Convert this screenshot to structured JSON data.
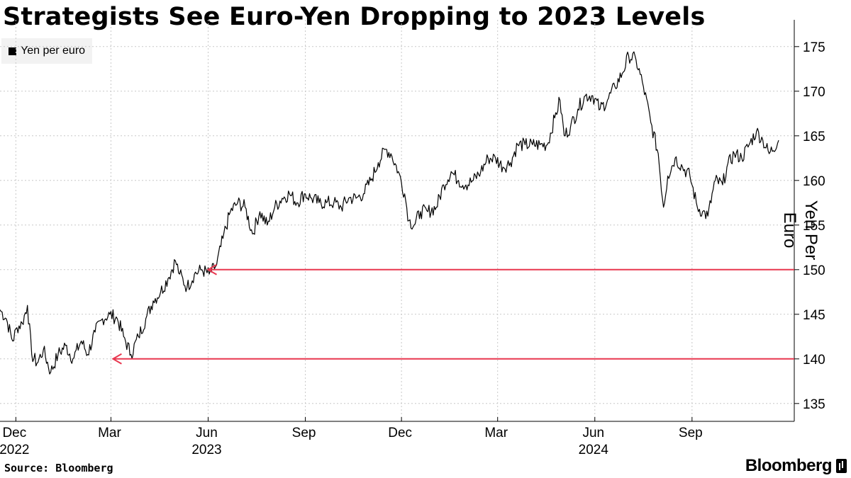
{
  "chart_data": {
    "type": "line",
    "title": "Strategists See Euro-Yen Dropping to 2023 Levels",
    "ylabel": "Yen Per Euro",
    "legend": [
      {
        "name": "Yen per euro",
        "color": "#000000"
      }
    ],
    "legend_placement": "top-left",
    "grid": true,
    "ylim": [
      133,
      178
    ],
    "y_ticks": [
      135,
      140,
      145,
      150,
      155,
      160,
      165,
      170,
      175
    ],
    "x_range": [
      "2022-11-16",
      "2024-11-22"
    ],
    "x_ticks": [
      {
        "date": "2022-12-01",
        "label": "Dec",
        "year": "2022"
      },
      {
        "date": "2023-03-01",
        "label": "Mar",
        "year": ""
      },
      {
        "date": "2023-06-01",
        "label": "Jun",
        "year": "2023"
      },
      {
        "date": "2023-09-01",
        "label": "Sep",
        "year": ""
      },
      {
        "date": "2023-12-01",
        "label": "Dec",
        "year": ""
      },
      {
        "date": "2024-03-01",
        "label": "Mar",
        "year": ""
      },
      {
        "date": "2024-06-01",
        "label": "Jun",
        "year": "2024"
      },
      {
        "date": "2024-09-01",
        "label": "Sep",
        "year": ""
      }
    ],
    "series": [
      {
        "name": "Yen per euro",
        "color": "#000000",
        "points": [
          [
            "2022-11-16",
            145.5
          ],
          [
            "2022-11-22",
            144.5
          ],
          [
            "2022-11-28",
            142.0
          ],
          [
            "2022-12-02",
            143.5
          ],
          [
            "2022-12-07",
            144.0
          ],
          [
            "2022-12-12",
            146.0
          ],
          [
            "2022-12-16",
            140.5
          ],
          [
            "2022-12-21",
            139.5
          ],
          [
            "2022-12-27",
            141.0
          ],
          [
            "2023-01-03",
            138.5
          ],
          [
            "2023-01-10",
            140.5
          ],
          [
            "2023-01-17",
            141.5
          ],
          [
            "2023-01-24",
            140.0
          ],
          [
            "2023-02-01",
            142.0
          ],
          [
            "2023-02-07",
            140.5
          ],
          [
            "2023-02-14",
            143.0
          ],
          [
            "2023-02-21",
            144.5
          ],
          [
            "2023-02-28",
            145.0
          ],
          [
            "2023-03-07",
            144.5
          ],
          [
            "2023-03-13",
            142.5
          ],
          [
            "2023-03-20",
            140.5
          ],
          [
            "2023-03-27",
            142.5
          ],
          [
            "2023-04-03",
            144.5
          ],
          [
            "2023-04-10",
            146.5
          ],
          [
            "2023-04-17",
            147.5
          ],
          [
            "2023-04-24",
            149.0
          ],
          [
            "2023-05-01",
            151.0
          ],
          [
            "2023-05-05",
            149.5
          ],
          [
            "2023-05-12",
            148.0
          ],
          [
            "2023-05-19",
            149.5
          ],
          [
            "2023-05-26",
            150.0
          ],
          [
            "2023-06-02",
            149.5
          ],
          [
            "2023-06-09",
            150.5
          ],
          [
            "2023-06-15",
            153.5
          ],
          [
            "2023-06-22",
            156.5
          ],
          [
            "2023-06-29",
            157.5
          ],
          [
            "2023-07-06",
            157.0
          ],
          [
            "2023-07-13",
            154.0
          ],
          [
            "2023-07-20",
            156.5
          ],
          [
            "2023-07-27",
            155.0
          ],
          [
            "2023-08-03",
            157.0
          ],
          [
            "2023-08-10",
            158.0
          ],
          [
            "2023-08-17",
            158.5
          ],
          [
            "2023-08-24",
            157.5
          ],
          [
            "2023-08-31",
            158.5
          ],
          [
            "2023-09-07",
            158.0
          ],
          [
            "2023-09-14",
            157.5
          ],
          [
            "2023-09-21",
            157.5
          ],
          [
            "2023-09-28",
            157.5
          ],
          [
            "2023-10-05",
            157.0
          ],
          [
            "2023-10-12",
            158.0
          ],
          [
            "2023-10-19",
            158.0
          ],
          [
            "2023-10-26",
            158.5
          ],
          [
            "2023-11-02",
            160.0
          ],
          [
            "2023-11-09",
            162.0
          ],
          [
            "2023-11-16",
            163.5
          ],
          [
            "2023-11-21",
            163.0
          ],
          [
            "2023-11-28",
            161.0
          ],
          [
            "2023-12-04",
            158.5
          ],
          [
            "2023-12-08",
            155.5
          ],
          [
            "2023-12-13",
            155.0
          ],
          [
            "2023-12-19",
            156.5
          ],
          [
            "2023-12-26",
            156.5
          ],
          [
            "2024-01-03",
            157.0
          ],
          [
            "2024-01-10",
            159.5
          ],
          [
            "2024-01-17",
            161.0
          ],
          [
            "2024-01-24",
            160.0
          ],
          [
            "2024-01-31",
            159.5
          ],
          [
            "2024-02-07",
            160.0
          ],
          [
            "2024-02-14",
            161.0
          ],
          [
            "2024-02-21",
            162.5
          ],
          [
            "2024-02-28",
            162.5
          ],
          [
            "2024-03-06",
            161.5
          ],
          [
            "2024-03-13",
            162.0
          ],
          [
            "2024-03-20",
            164.0
          ],
          [
            "2024-03-27",
            164.0
          ],
          [
            "2024-04-03",
            164.0
          ],
          [
            "2024-04-10",
            164.0
          ],
          [
            "2024-04-17",
            164.0
          ],
          [
            "2024-04-24",
            167.0
          ],
          [
            "2024-04-29",
            169.0
          ],
          [
            "2024-05-03",
            165.0
          ],
          [
            "2024-05-09",
            166.0
          ],
          [
            "2024-05-16",
            168.0
          ],
          [
            "2024-05-23",
            169.5
          ],
          [
            "2024-05-30",
            169.5
          ],
          [
            "2024-06-06",
            168.0
          ],
          [
            "2024-06-13",
            169.0
          ],
          [
            "2024-06-20",
            170.5
          ],
          [
            "2024-06-27",
            172.0
          ],
          [
            "2024-07-03",
            174.0
          ],
          [
            "2024-07-10",
            173.5
          ],
          [
            "2024-07-17",
            170.5
          ],
          [
            "2024-07-24",
            166.5
          ],
          [
            "2024-07-31",
            163.0
          ],
          [
            "2024-08-05",
            157.0
          ],
          [
            "2024-08-09",
            160.5
          ],
          [
            "2024-08-16",
            162.5
          ],
          [
            "2024-08-23",
            161.5
          ],
          [
            "2024-08-30",
            160.5
          ],
          [
            "2024-09-06",
            157.0
          ],
          [
            "2024-09-11",
            156.5
          ],
          [
            "2024-09-16",
            156.0
          ],
          [
            "2024-09-23",
            160.0
          ],
          [
            "2024-09-30",
            159.5
          ],
          [
            "2024-10-04",
            161.5
          ],
          [
            "2024-10-11",
            163.0
          ],
          [
            "2024-10-18",
            162.5
          ],
          [
            "2024-10-25",
            164.0
          ],
          [
            "2024-11-01",
            165.5
          ],
          [
            "2024-11-07",
            164.5
          ],
          [
            "2024-11-13",
            163.0
          ],
          [
            "2024-11-22",
            164.5
          ]
        ]
      }
    ],
    "annotations": [
      {
        "type": "arrow",
        "y": 150,
        "from_date": "2023-06-01",
        "color": "#e8374f"
      },
      {
        "type": "arrow",
        "y": 140,
        "from_date": "2023-03-03",
        "color": "#e8374f"
      }
    ]
  },
  "footer": {
    "source": "Source: Bloomberg",
    "brand": "Bloomberg",
    "brand_icon": "bloomberg-terminal-icon"
  }
}
